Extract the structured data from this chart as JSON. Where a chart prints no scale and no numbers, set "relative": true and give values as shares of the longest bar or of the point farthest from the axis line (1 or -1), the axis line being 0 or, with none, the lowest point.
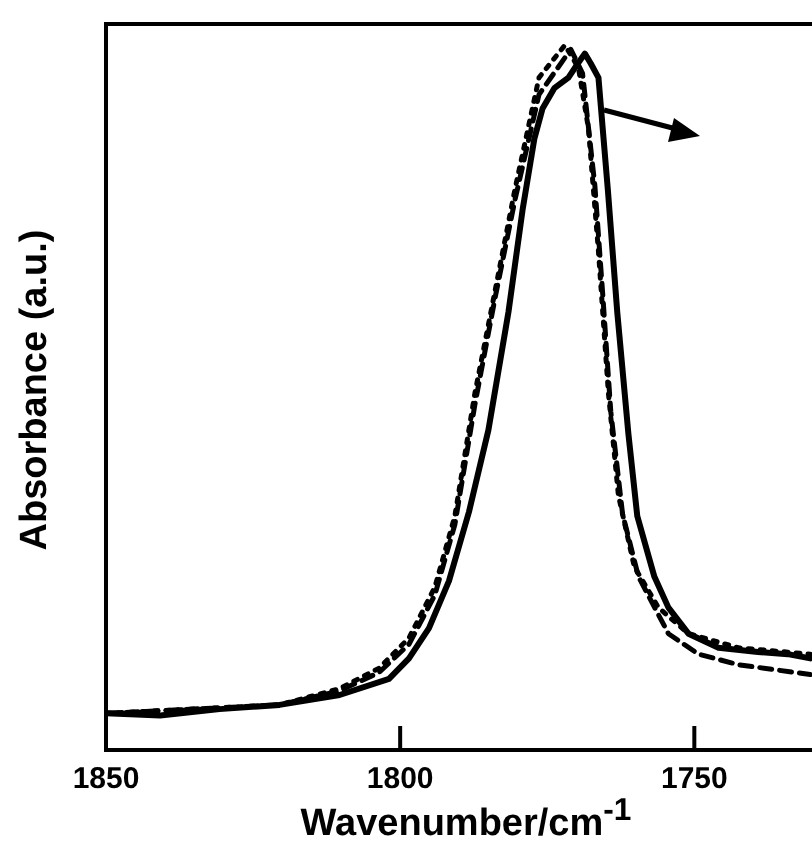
{
  "chart_data": {
    "type": "line",
    "relative": true,
    "xlabel": "Wavenumber/cm$^{-1}$",
    "ylabel": "Absorbance (a.u.)",
    "xlim": [
      1850,
      1730
    ],
    "xticks": [
      1850,
      1800,
      1750
    ],
    "grid": false,
    "legend": false,
    "marker": "none",
    "tick_labels": "x",
    "series": [
      {
        "color": "#000000",
        "line_style": "solid",
        "x": [
          1850,
          1840.8,
          1830.7,
          1820.5,
          1810.3,
          1801.9,
          1798.5,
          1795.1,
          1791.7,
          1788.3,
          1785.0,
          1781.6,
          1779.2,
          1777.2,
          1775.8,
          1773.8,
          1771.4,
          1769.8,
          1768.6,
          1767.6,
          1766.3,
          1764.7,
          1763.1,
          1761.2,
          1759.7,
          1756.8,
          1754.4,
          1751.0,
          1745.9,
          1739.2,
          1734.1,
          1730.3
        ],
        "values": [
          0.052,
          0.049,
          0.058,
          0.064,
          0.078,
          0.101,
          0.13,
          0.173,
          0.24,
          0.338,
          0.454,
          0.621,
          0.766,
          0.867,
          0.91,
          0.939,
          0.954,
          0.974,
          0.988,
          0.974,
          0.954,
          0.795,
          0.621,
          0.448,
          0.332,
          0.246,
          0.202,
          0.165,
          0.145,
          0.139,
          0.136,
          0.13
        ]
      },
      {
        "color": "#000000",
        "line_style": "dotted",
        "x": [
          1850,
          1820.5,
          1810.3,
          1803.6,
          1798.5,
          1794.1,
          1790.7,
          1787.3,
          1783.9,
          1780.5,
          1776.4,
          1772.0,
          1769.7,
          1768.0,
          1766.3,
          1764.6,
          1762.9,
          1760.2,
          1756.1,
          1751.0,
          1742.5,
          1730.3
        ],
        "values": [
          0.052,
          0.064,
          0.087,
          0.116,
          0.159,
          0.231,
          0.332,
          0.506,
          0.65,
          0.795,
          0.954,
          1.0,
          0.968,
          0.882,
          0.708,
          0.506,
          0.361,
          0.26,
          0.202,
          0.165,
          0.145,
          0.136
        ]
      },
      {
        "color": "#000000",
        "line_style": "dashed",
        "x": [
          1850,
          1820.5,
          1810.3,
          1803.6,
          1798.5,
          1794.1,
          1790.7,
          1787.3,
          1783.9,
          1780.5,
          1776.4,
          1771.0,
          1769.0,
          1766.9,
          1765.6,
          1764.2,
          1762.2,
          1759.5,
          1754.4,
          1749.3,
          1742.5,
          1730.3
        ],
        "values": [
          0.052,
          0.064,
          0.084,
          0.11,
          0.15,
          0.22,
          0.32,
          0.49,
          0.64,
          0.78,
          0.93,
          0.994,
          0.96,
          0.8,
          0.65,
          0.48,
          0.335,
          0.246,
          0.165,
          0.136,
          0.121,
          0.107
        ]
      }
    ]
  }
}
